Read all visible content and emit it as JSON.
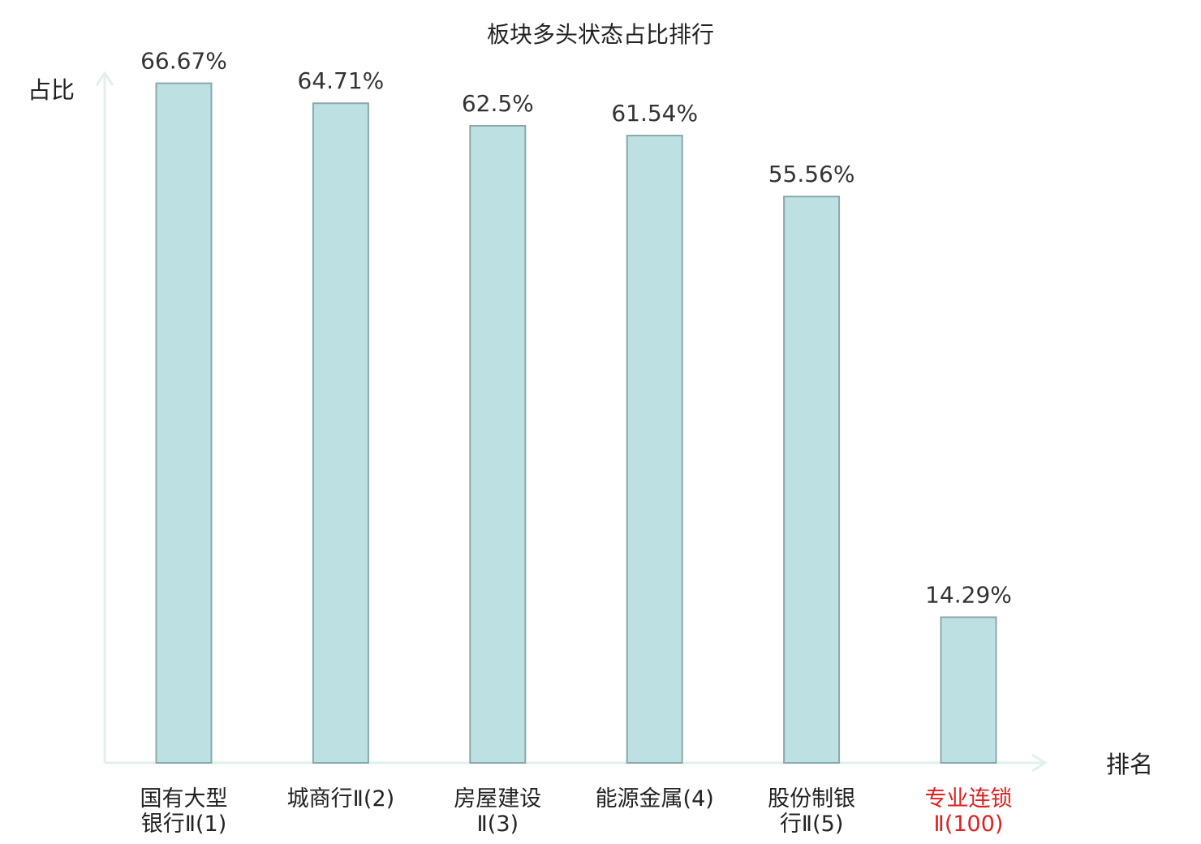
{
  "chart_data": {
    "type": "bar",
    "title": "板块多头状态占比排行",
    "ylabel": "占比",
    "xlabel": "排名",
    "ylim": [
      0,
      70
    ],
    "grid": false,
    "categories": [
      [
        "国有大型",
        "银行Ⅱ(1)"
      ],
      [
        "城商行Ⅱ(2)"
      ],
      [
        "房屋建设",
        "Ⅱ(3)"
      ],
      [
        "能源金属(4)"
      ],
      [
        "股份制银",
        "行Ⅱ(5)"
      ],
      [
        "专业连锁",
        "Ⅱ(100)"
      ]
    ],
    "values": [
      66.67,
      64.71,
      62.5,
      61.54,
      55.56,
      14.29
    ],
    "value_labels": [
      "66.67%",
      "64.71%",
      "62.5%",
      "61.54%",
      "55.56%",
      "14.29%"
    ],
    "label_colors": [
      "#222222",
      "#222222",
      "#222222",
      "#222222",
      "#222222",
      "#e02020"
    ],
    "bar_fill": "#bde0e3",
    "bar_stroke": "#8aa8aa",
    "axis_color": "#dff0ee"
  }
}
